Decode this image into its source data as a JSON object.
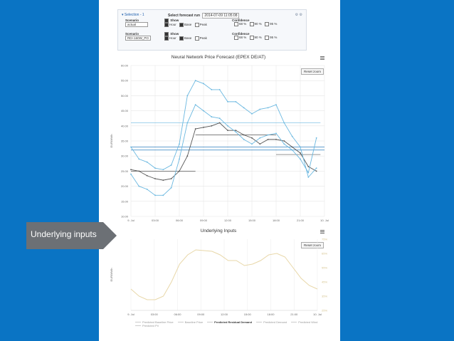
{
  "selection": {
    "title": "▾ Selection - 1",
    "forecast_run_label": "Select forecast run",
    "forecast_run_value": "2014-07-09 11:05:08",
    "row1": {
      "scenario_label": "Scenario",
      "scenario_value": "actual",
      "show_label": "Show",
      "hour": "Hour",
      "base": "Base",
      "peak": "Peak",
      "confidence_label": "Confidence",
      "c1": "68 %",
      "c2": "90 %",
      "c3": "95 %"
    },
    "row2": {
      "scenario_label": "Scenario",
      "scenario_value": "RD+160W_PO",
      "show_label": "Show",
      "hour": "Hour",
      "base": "Base",
      "peak": "Peak",
      "confidence_label": "Confidence",
      "c1": "68 %",
      "c2": "90 %",
      "c3": "95 %"
    }
  },
  "price_chart": {
    "title": "Neural Network Price Forecast (EPEX DE/AT)",
    "reset_label": "Reset zoom",
    "ylabel": "EUR/MWh"
  },
  "inputs_chart": {
    "title": "Underlying Inputs",
    "reset_label": "Reset zoom",
    "ylabel": "EUR/MWh"
  },
  "callout": {
    "text": "Underlying inputs"
  },
  "legend": [
    {
      "label": "Predicted Baseline Price",
      "bold": false
    },
    {
      "label": "Baseline Price",
      "bold": false
    },
    {
      "label": "Predicted Residual Demand",
      "bold": true
    },
    {
      "label": "Predicted Demand",
      "bold": false
    },
    {
      "label": "Predicted Wind",
      "bold": false
    },
    {
      "label": "Predicted PV",
      "bold": false
    }
  ],
  "chart_data": [
    {
      "type": "line",
      "title": "Neural Network Price Forecast (EPEX DE/AT)",
      "ylabel": "EUR/MWh",
      "xlabel": "",
      "ylim": [
        10,
        60
      ],
      "x_ticks": [
        "9. Jul",
        "03:00",
        "06:00",
        "09:00",
        "12:00",
        "15:00",
        "18:00",
        "21:00",
        "10. Jul"
      ],
      "y_ticks": [
        "10.00",
        "15.00",
        "20.00",
        "25.00",
        "30.00",
        "35.00",
        "40.00",
        "45.00",
        "50.00",
        "55.00",
        "60.00"
      ],
      "grid": true,
      "x_hours": [
        0,
        1,
        2,
        3,
        4,
        5,
        6,
        7,
        8,
        9,
        10,
        11,
        12,
        13,
        14,
        15,
        16,
        17,
        18,
        19,
        20,
        21,
        22,
        23
      ],
      "series": [
        {
          "color": "#555555",
          "values": [
            25.5,
            25,
            23.5,
            22.5,
            22,
            22.5,
            25,
            30,
            39,
            39.5,
            40,
            41,
            38.5,
            38.5,
            37,
            36,
            34,
            35.5,
            35.5,
            35,
            33,
            31,
            26.5,
            25
          ]
        },
        {
          "color": "#6bb8e0",
          "values": [
            33,
            29,
            28,
            26,
            25.5,
            27,
            34,
            50,
            55,
            54,
            52,
            52,
            48,
            48,
            46,
            44,
            45.5,
            46,
            47,
            41,
            36.5,
            33,
            23,
            26
          ]
        },
        {
          "color": "#6bb8e0",
          "values": [
            24,
            20,
            19,
            17,
            17,
            19.5,
            29,
            41,
            47,
            45,
            43,
            42.5,
            40,
            38,
            35.5,
            34,
            36,
            37,
            37.5,
            34,
            32,
            29,
            24.5,
            36
          ]
        }
      ]
    },
    {
      "type": "line",
      "title": "Underlying Inputs",
      "ylabel": "EUR/MWh",
      "x_ticks": [
        "9. Jul",
        "03:00",
        "06:00",
        "09:00",
        "12:00",
        "15:00",
        "18:00",
        "21:00",
        "10. Jul"
      ],
      "right_ticks": [
        "75%",
        "65%",
        "55%",
        "45%",
        "35%",
        "25%"
      ],
      "series": [
        {
          "name": "Predicted Residual Demand",
          "color": "#e8d7a8",
          "values": [
            0.3,
            0.2,
            0.15,
            0.15,
            0.2,
            0.4,
            0.65,
            0.78,
            0.85,
            0.84,
            0.83,
            0.78,
            0.7,
            0.7,
            0.63,
            0.65,
            0.7,
            0.78,
            0.8,
            0.75,
            0.6,
            0.45,
            0.35,
            0.3
          ]
        }
      ]
    }
  ]
}
